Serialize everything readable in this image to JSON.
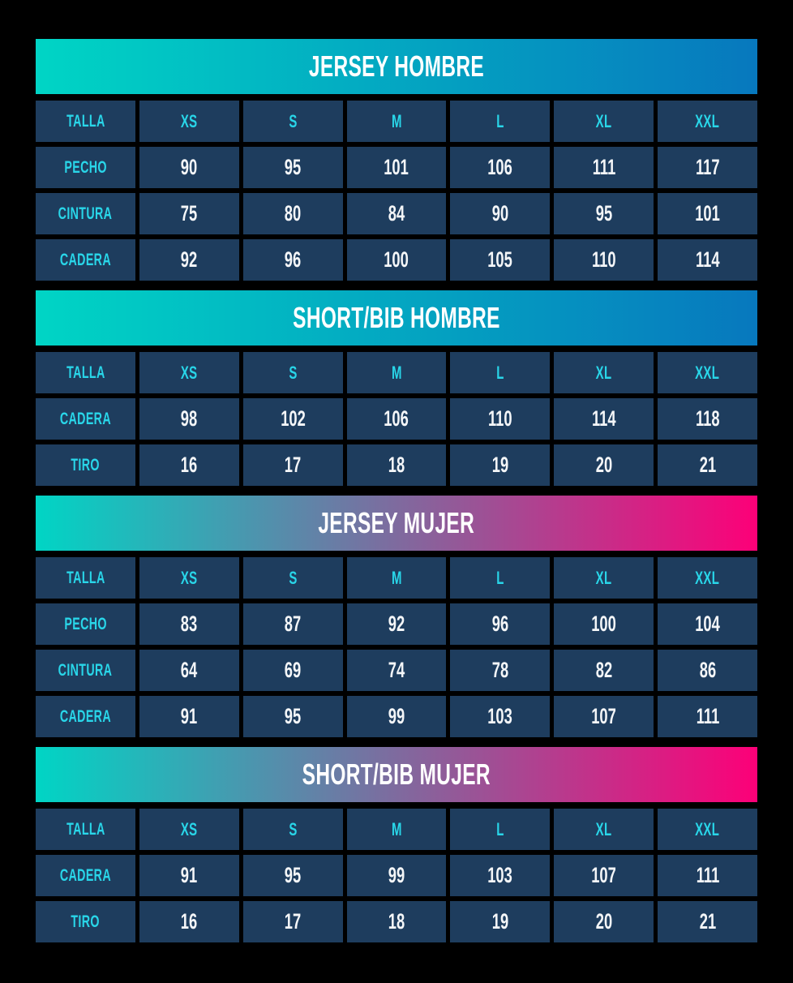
{
  "page": {
    "background": "#000000",
    "description_title": "size-chart"
  },
  "colors": {
    "gradient_teal": "#00d5c5",
    "gradient_blue": "#0778be",
    "gradient_pink": "#fd0078",
    "cell_background": "#1e3d5e",
    "label_cyan": "#29d6e9",
    "value_text": "#f4f6f8",
    "title_text": "#ffffff"
  },
  "sections": [
    {
      "title": "JERSEY HOMBRE",
      "theme": "hombre",
      "rows": [
        {
          "label": "TALLA",
          "kind": "sizes",
          "values": [
            "XS",
            "S",
            "M",
            "L",
            "XL",
            "XXL"
          ]
        },
        {
          "label": "PECHO",
          "kind": "measure",
          "values": [
            "90",
            "95",
            "101",
            "106",
            "111",
            "117"
          ]
        },
        {
          "label": "CINTURA",
          "kind": "measure",
          "values": [
            "75",
            "80",
            "84",
            "90",
            "95",
            "101"
          ]
        },
        {
          "label": "CADERA",
          "kind": "measure",
          "values": [
            "92",
            "96",
            "100",
            "105",
            "110",
            "114"
          ]
        }
      ]
    },
    {
      "title": "SHORT/BIB HOMBRE",
      "theme": "hombre",
      "rows": [
        {
          "label": "TALLA",
          "kind": "sizes",
          "values": [
            "XS",
            "S",
            "M",
            "L",
            "XL",
            "XXL"
          ]
        },
        {
          "label": "CADERA",
          "kind": "measure",
          "values": [
            "98",
            "102",
            "106",
            "110",
            "114",
            "118"
          ]
        },
        {
          "label": "TIRO",
          "kind": "measure",
          "values": [
            "16",
            "17",
            "18",
            "19",
            "20",
            "21"
          ]
        }
      ]
    },
    {
      "title": "JERSEY MUJER",
      "theme": "mujer",
      "rows": [
        {
          "label": "TALLA",
          "kind": "sizes",
          "values": [
            "XS",
            "S",
            "M",
            "L",
            "XL",
            "XXL"
          ]
        },
        {
          "label": "PECHO",
          "kind": "measure",
          "values": [
            "83",
            "87",
            "92",
            "96",
            "100",
            "104"
          ]
        },
        {
          "label": "CINTURA",
          "kind": "measure",
          "values": [
            "64",
            "69",
            "74",
            "78",
            "82",
            "86"
          ]
        },
        {
          "label": "CADERA",
          "kind": "measure",
          "values": [
            "91",
            "95",
            "99",
            "103",
            "107",
            "111"
          ]
        }
      ]
    },
    {
      "title": "SHORT/BIB MUJER",
      "theme": "mujer",
      "rows": [
        {
          "label": "TALLA",
          "kind": "sizes",
          "values": [
            "XS",
            "S",
            "M",
            "L",
            "XL",
            "XXL"
          ]
        },
        {
          "label": "CADERA",
          "kind": "measure",
          "values": [
            "91",
            "95",
            "99",
            "103",
            "107",
            "111"
          ]
        },
        {
          "label": "TIRO",
          "kind": "measure",
          "values": [
            "16",
            "17",
            "18",
            "19",
            "20",
            "21"
          ]
        }
      ]
    }
  ],
  "chart_data": [
    {
      "type": "table",
      "title": "JERSEY HOMBRE",
      "columns": [
        "TALLA",
        "XS",
        "S",
        "M",
        "L",
        "XL",
        "XXL"
      ],
      "rows": [
        [
          "PECHO",
          90,
          95,
          101,
          106,
          111,
          117
        ],
        [
          "CINTURA",
          75,
          80,
          84,
          90,
          95,
          101
        ],
        [
          "CADERA",
          92,
          96,
          100,
          105,
          110,
          114
        ]
      ]
    },
    {
      "type": "table",
      "title": "SHORT/BIB HOMBRE",
      "columns": [
        "TALLA",
        "XS",
        "S",
        "M",
        "L",
        "XL",
        "XXL"
      ],
      "rows": [
        [
          "CADERA",
          98,
          102,
          106,
          110,
          114,
          118
        ],
        [
          "TIRO",
          16,
          17,
          18,
          19,
          20,
          21
        ]
      ]
    },
    {
      "type": "table",
      "title": "JERSEY MUJER",
      "columns": [
        "TALLA",
        "XS",
        "S",
        "M",
        "L",
        "XL",
        "XXL"
      ],
      "rows": [
        [
          "PECHO",
          83,
          87,
          92,
          96,
          100,
          104
        ],
        [
          "CINTURA",
          64,
          69,
          74,
          78,
          82,
          86
        ],
        [
          "CADERA",
          91,
          95,
          99,
          103,
          107,
          111
        ]
      ]
    },
    {
      "type": "table",
      "title": "SHORT/BIB MUJER",
      "columns": [
        "TALLA",
        "XS",
        "S",
        "M",
        "L",
        "XL",
        "XXL"
      ],
      "rows": [
        [
          "CADERA",
          91,
          95,
          99,
          103,
          107,
          111
        ],
        [
          "TIRO",
          16,
          17,
          18,
          19,
          20,
          21
        ]
      ]
    }
  ]
}
